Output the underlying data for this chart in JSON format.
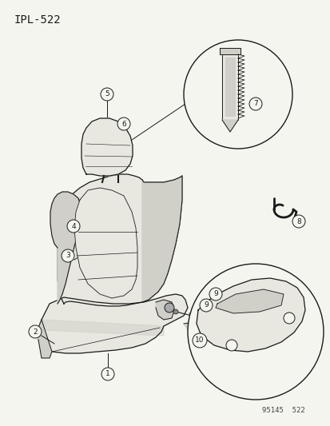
{
  "title": "IPL-522",
  "watermark": "95145  522",
  "bg_color": "#f5f5f0",
  "line_color": "#1a1a1a",
  "fill_light": "#e8e8e0",
  "fill_mid": "#d0d0c8",
  "fill_dark": "#b8b8b0",
  "title_fontsize": 10,
  "label_fontsize": 6.5,
  "watermark_fontsize": 6.5
}
